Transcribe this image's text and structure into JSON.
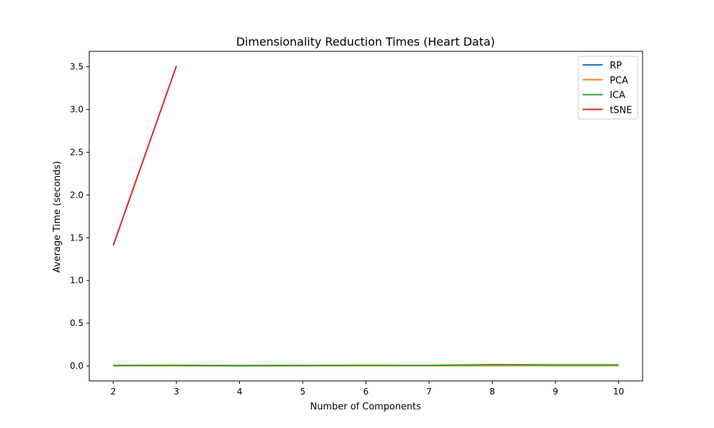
{
  "chart_data": {
    "type": "line",
    "title": "Dimensionality Reduction Times (Heart Data)",
    "xlabel": "Number of Components",
    "ylabel": "Average Time (seconds)",
    "xlim": [
      1.62,
      10.38
    ],
    "ylim": [
      -0.175,
      3.68
    ],
    "xticks": [
      2,
      3,
      4,
      5,
      6,
      7,
      8,
      9,
      10
    ],
    "xtick_labels": [
      "2",
      "3",
      "4",
      "5",
      "6",
      "7",
      "8",
      "9",
      "10"
    ],
    "yticks": [
      0.0,
      0.5,
      1.0,
      1.5,
      2.0,
      2.5,
      3.0,
      3.5
    ],
    "ytick_labels": [
      "0.0",
      "0.5",
      "1.0",
      "1.5",
      "2.0",
      "2.5",
      "3.0",
      "3.5"
    ],
    "grid": false,
    "legend_position": "top-right",
    "series": [
      {
        "name": "RP",
        "color": "#1f77b4",
        "x": [
          2,
          3,
          4,
          5,
          6,
          7,
          8,
          9,
          10
        ],
        "y": [
          0.003,
          0.004,
          0.002,
          0.003,
          0.004,
          0.004,
          0.006,
          0.005,
          0.005
        ]
      },
      {
        "name": "PCA",
        "color": "#ff7f0e",
        "x": [
          2,
          3,
          4,
          5,
          6,
          7,
          8,
          9,
          10
        ],
        "y": [
          0.002,
          0.003,
          0.002,
          0.002,
          0.003,
          0.003,
          0.004,
          0.004,
          0.004
        ]
      },
      {
        "name": "ICA",
        "color": "#2ca02c",
        "x": [
          2,
          3,
          4,
          5,
          6,
          7,
          8,
          9,
          10
        ],
        "y": [
          0.006,
          0.008,
          0.005,
          0.007,
          0.008,
          0.007,
          0.016,
          0.013,
          0.013
        ]
      },
      {
        "name": "tSNE",
        "color": "#d62728",
        "x": [
          2,
          3
        ],
        "y": [
          1.41,
          3.51
        ]
      }
    ]
  }
}
